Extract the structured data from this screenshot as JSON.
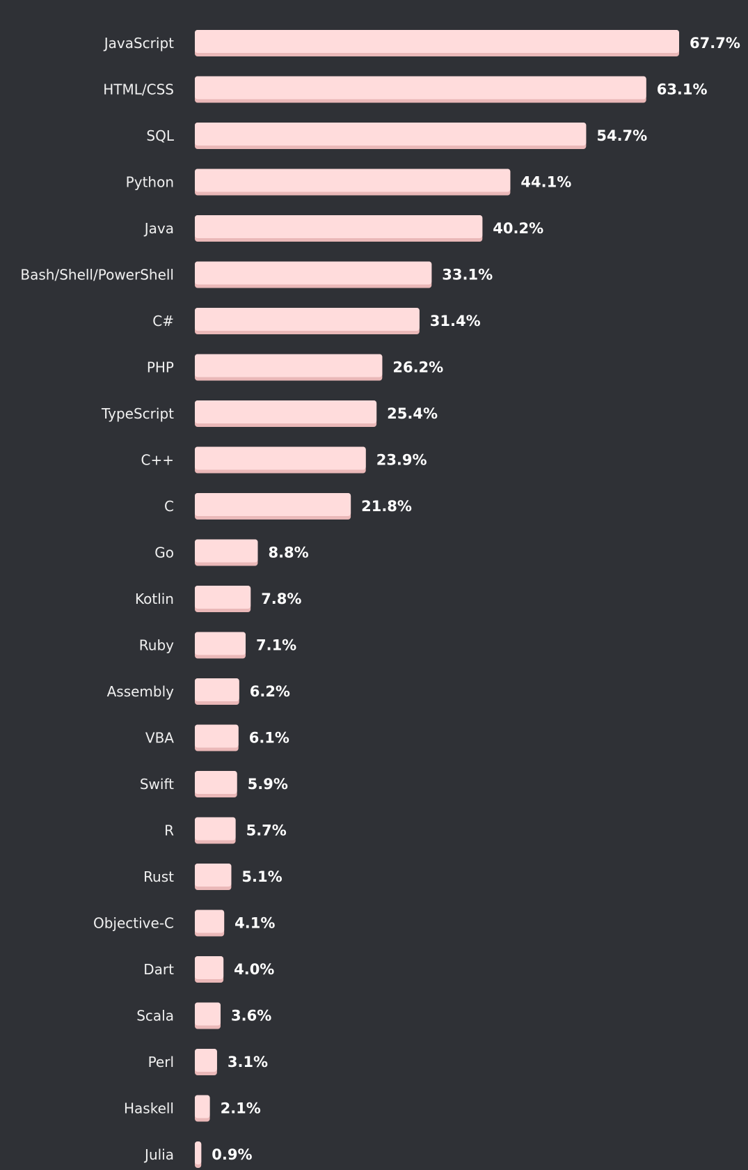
{
  "chart_data": {
    "type": "bar",
    "orientation": "horizontal",
    "title": "",
    "xlabel": "",
    "ylabel": "",
    "xlim": [
      0,
      67.7
    ],
    "categories": [
      "JavaScript",
      "HTML/CSS",
      "SQL",
      "Python",
      "Java",
      "Bash/Shell/PowerShell",
      "C#",
      "PHP",
      "TypeScript",
      "C++",
      "C",
      "Go",
      "Kotlin",
      "Ruby",
      "Assembly",
      "VBA",
      "Swift",
      "R",
      "Rust",
      "Objective-C",
      "Dart",
      "Scala",
      "Perl",
      "Haskell",
      "Julia"
    ],
    "values": [
      67.7,
      63.1,
      54.7,
      44.1,
      40.2,
      33.1,
      31.4,
      26.2,
      25.4,
      23.9,
      21.8,
      8.8,
      7.8,
      7.1,
      6.2,
      6.1,
      5.9,
      5.7,
      5.1,
      4.1,
      4.0,
      3.6,
      3.1,
      2.1,
      0.9
    ],
    "value_labels": [
      "67.7%",
      "63.1%",
      "54.7%",
      "44.1%",
      "40.2%",
      "33.1%",
      "31.4%",
      "26.2%",
      "25.4%",
      "23.9%",
      "21.8%",
      "8.8%",
      "7.8%",
      "7.1%",
      "6.2%",
      "6.1%",
      "5.9%",
      "5.7%",
      "5.1%",
      "4.1%",
      "4.0%",
      "3.6%",
      "3.1%",
      "2.1%",
      "0.9%"
    ],
    "grid": false,
    "legend": "none",
    "colors": {
      "background": "#2f3136",
      "bar": "#ffdcdc",
      "bar_shadow": "#eab8b8",
      "category_text": "#f1f1f1",
      "value_text": "#ffffff"
    }
  }
}
